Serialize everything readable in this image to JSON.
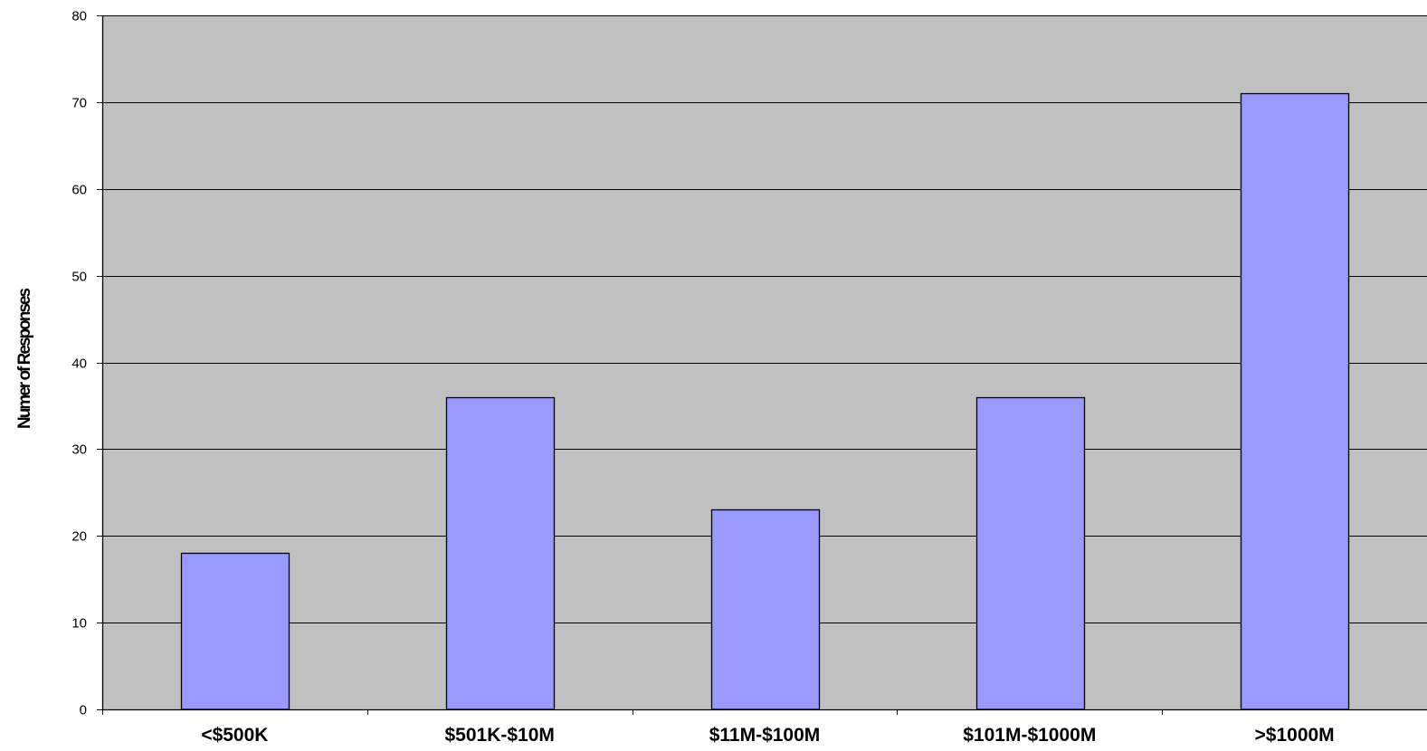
{
  "chart_data": {
    "type": "bar",
    "categories": [
      "<$500K",
      "$501K-$10M",
      "$11M-$100M",
      "$101M-$1000M",
      ">$1000M"
    ],
    "values": [
      18,
      36,
      23,
      36,
      71
    ],
    "ylabel": "Numer of Responses",
    "xlabel": "",
    "title": "",
    "ylim": [
      0,
      80
    ],
    "yticks": [
      0,
      10,
      20,
      30,
      40,
      50,
      60,
      70,
      80
    ],
    "grid": true,
    "legend": "none",
    "colors": {
      "plot_background": "#c0c0c0",
      "bar_fill": "#9999ff",
      "bar_stroke": "#000000",
      "gridline": "#000000"
    }
  }
}
